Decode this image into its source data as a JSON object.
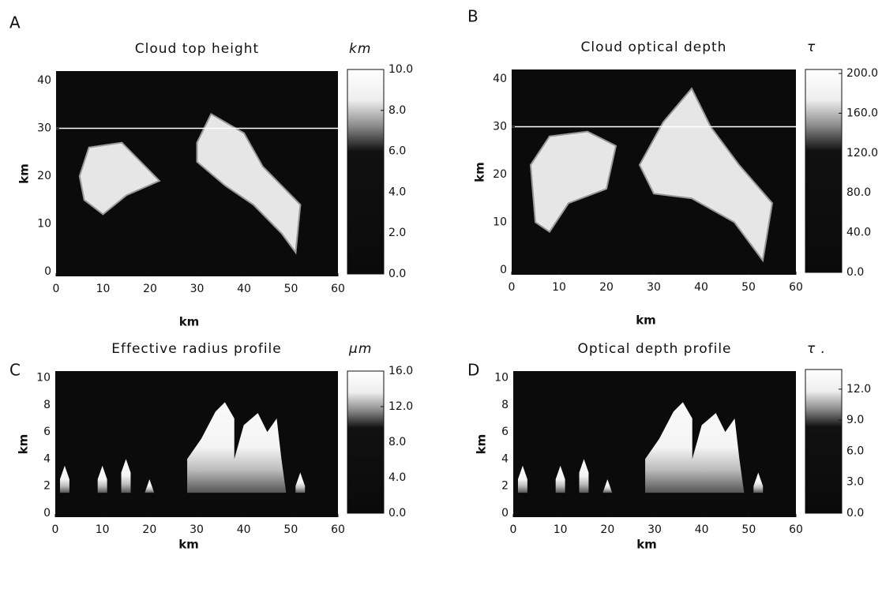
{
  "panels": [
    {
      "letter": "A",
      "title": "Cloud top height",
      "unit": "km",
      "x_label": "km",
      "y_label": "km",
      "xlim": [
        0,
        60
      ],
      "xticks": [
        0,
        10,
        20,
        30,
        40,
        50,
        60
      ],
      "ylim": [
        -1,
        42
      ],
      "yticks": [
        0,
        10,
        20,
        30,
        40
      ],
      "colorbar_lim": [
        0,
        10
      ],
      "colorbar_ticks": [
        {
          "value": 0,
          "label": "0.0"
        },
        {
          "value": 2,
          "label": "2.0"
        },
        {
          "value": 4,
          "label": "4.0"
        },
        {
          "value": 6,
          "label": "6.0"
        },
        {
          "value": 8,
          "label": "8.0"
        },
        {
          "value": 10,
          "label": "10.0"
        }
      ]
    },
    {
      "letter": "B",
      "title": "Cloud optical depth",
      "unit": "τ",
      "x_label": "km",
      "y_label": "km",
      "xlim": [
        0,
        60
      ],
      "xticks": [
        0,
        10,
        20,
        30,
        40,
        50,
        60
      ],
      "ylim": [
        -1,
        42
      ],
      "yticks": [
        0,
        10,
        20,
        30,
        40
      ],
      "colorbar_lim": [
        0,
        204
      ],
      "colorbar_ticks": [
        {
          "value": 0,
          "label": "0.0"
        },
        {
          "value": 40,
          "label": "40.0"
        },
        {
          "value": 80,
          "label": "80.0"
        },
        {
          "value": 120,
          "label": "120.0"
        },
        {
          "value": 160,
          "label": "160.0"
        },
        {
          "value": 200,
          "label": "200.0"
        }
      ]
    },
    {
      "letter": "C",
      "title": "Effective radius profile",
      "unit": "μm",
      "x_label": "km",
      "y_label": "km",
      "xlim": [
        0,
        60
      ],
      "xticks": [
        0,
        10,
        20,
        30,
        40,
        50,
        60
      ],
      "ylim": [
        -0.3,
        10.5
      ],
      "yticks": [
        0,
        2,
        4,
        6,
        8,
        10
      ],
      "colorbar_lim": [
        0,
        16
      ],
      "colorbar_ticks": [
        {
          "value": 0,
          "label": "0.0"
        },
        {
          "value": 4,
          "label": "4.0"
        },
        {
          "value": 8,
          "label": "8.0"
        },
        {
          "value": 12,
          "label": "12.0"
        },
        {
          "value": 16,
          "label": "16.0"
        }
      ]
    },
    {
      "letter": "D",
      "title": "Optical depth profile",
      "unit": "τ .",
      "x_label": "km",
      "y_label": "km",
      "xlim": [
        0,
        60
      ],
      "xticks": [
        0,
        10,
        20,
        30,
        40,
        50,
        60
      ],
      "ylim": [
        -0.3,
        10.5
      ],
      "yticks": [
        0,
        2,
        4,
        6,
        8,
        10
      ],
      "colorbar_lim": [
        0,
        13.9
      ],
      "colorbar_ticks": [
        {
          "value": 0,
          "label": "0.0"
        },
        {
          "value": 3,
          "label": "3.0"
        },
        {
          "value": 6,
          "label": "6.0"
        },
        {
          "value": 9,
          "label": "9.0"
        },
        {
          "value": 12,
          "label": "12.0"
        }
      ]
    }
  ]
}
